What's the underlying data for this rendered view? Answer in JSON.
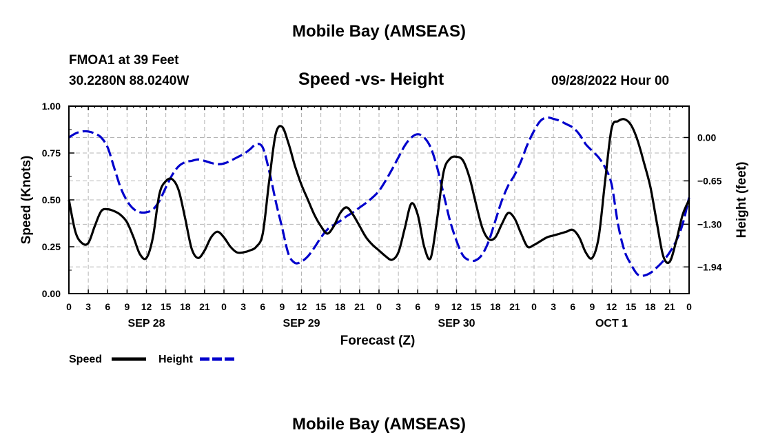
{
  "page": {
    "title": "Mobile Bay (AMSEAS)",
    "footer_title": "Mobile Bay (AMSEAS)",
    "station": "FMOA1 at 39 Feet",
    "coords": "30.2280N  88.0240W",
    "subtitle": "Speed -vs- Height",
    "datetime": "09/28/2022 Hour 00"
  },
  "chart_data": {
    "type": "line",
    "title": "Speed -vs- Height",
    "xlabel": "Forecast (Z)",
    "ylabel": "Speed (Knots)",
    "y2label": "Height (feet)",
    "xlim": [
      0,
      96
    ],
    "ylim": [
      0,
      1.0
    ],
    "y2lim": [
      -2.34,
      0.47
    ],
    "x_ticks": [
      0,
      3,
      6,
      9,
      12,
      15,
      18,
      21,
      24,
      27,
      30,
      33,
      36,
      39,
      42,
      45,
      48,
      51,
      54,
      57,
      60,
      63,
      66,
      69,
      72,
      75,
      78,
      81,
      84,
      87,
      90,
      93,
      96
    ],
    "x_tick_labels": [
      "0",
      "3",
      "6",
      "9",
      "12",
      "15",
      "18",
      "21",
      "0",
      "3",
      "6",
      "9",
      "12",
      "15",
      "18",
      "21",
      "0",
      "3",
      "6",
      "9",
      "12",
      "15",
      "18",
      "21",
      "0",
      "3",
      "6",
      "9",
      "12",
      "15",
      "18",
      "21",
      "0"
    ],
    "day_labels": [
      {
        "x": 12,
        "label": "SEP 28"
      },
      {
        "x": 36,
        "label": "SEP 29"
      },
      {
        "x": 60,
        "label": "SEP 30"
      },
      {
        "x": 84,
        "label": "OCT 1"
      }
    ],
    "y_ticks": [
      0,
      0.25,
      0.5,
      0.75,
      1.0
    ],
    "y_tick_labels": [
      "0.00",
      "0.25",
      "0.50",
      "0.75",
      "1.00"
    ],
    "y2_ticks": [
      0.0,
      -0.65,
      -1.3,
      -1.94
    ],
    "y2_tick_labels": [
      "0.00",
      "−0.65",
      "−1.30",
      "−1.94"
    ],
    "grid": true,
    "legend_position": "bottom-left",
    "series": [
      {
        "name": "Speed",
        "axis": "left",
        "color": "#000000",
        "style": "solid",
        "x": [
          0,
          1,
          2,
          3,
          4,
          5,
          6,
          7,
          8,
          9,
          10,
          11,
          12,
          13,
          14,
          15,
          16,
          17,
          18,
          19,
          20,
          21,
          22,
          23,
          24,
          25,
          26,
          27,
          28,
          29,
          30,
          31,
          32,
          33,
          34,
          35,
          36,
          37,
          38,
          39,
          40,
          41,
          42,
          43,
          44,
          45,
          46,
          47,
          48,
          49,
          50,
          51,
          52,
          53,
          54,
          55,
          56,
          57,
          58,
          59,
          60,
          61,
          62,
          63,
          64,
          65,
          66,
          67,
          68,
          69,
          70,
          71,
          72,
          73,
          74,
          75,
          76,
          77,
          78,
          79,
          80,
          81,
          82,
          83,
          84,
          85,
          86,
          87,
          88,
          89,
          90,
          91,
          92,
          93,
          94,
          95,
          96
        ],
        "values": [
          0.5,
          0.33,
          0.27,
          0.27,
          0.36,
          0.44,
          0.45,
          0.44,
          0.42,
          0.38,
          0.3,
          0.21,
          0.19,
          0.3,
          0.53,
          0.6,
          0.61,
          0.55,
          0.4,
          0.24,
          0.19,
          0.23,
          0.3,
          0.33,
          0.3,
          0.25,
          0.22,
          0.22,
          0.23,
          0.25,
          0.32,
          0.6,
          0.85,
          0.89,
          0.8,
          0.68,
          0.58,
          0.5,
          0.42,
          0.36,
          0.32,
          0.36,
          0.43,
          0.46,
          0.42,
          0.36,
          0.3,
          0.26,
          0.23,
          0.2,
          0.18,
          0.22,
          0.35,
          0.48,
          0.42,
          0.25,
          0.19,
          0.4,
          0.65,
          0.72,
          0.73,
          0.71,
          0.62,
          0.48,
          0.35,
          0.29,
          0.3,
          0.37,
          0.43,
          0.4,
          0.32,
          0.25,
          0.26,
          0.28,
          0.3,
          0.31,
          0.32,
          0.33,
          0.34,
          0.3,
          0.22,
          0.19,
          0.3,
          0.6,
          0.88,
          0.92,
          0.93,
          0.9,
          0.82,
          0.7,
          0.57,
          0.38,
          0.2,
          0.17,
          0.28,
          0.42,
          0.5
        ]
      },
      {
        "name": "Height",
        "axis": "right",
        "color": "#0000cc",
        "style": "dashed",
        "x": [
          0,
          1,
          2,
          3,
          4,
          5,
          6,
          7,
          8,
          9,
          10,
          11,
          12,
          13,
          14,
          15,
          16,
          17,
          18,
          19,
          20,
          21,
          22,
          23,
          24,
          25,
          26,
          27,
          28,
          29,
          30,
          31,
          32,
          33,
          34,
          35,
          36,
          37,
          38,
          39,
          40,
          41,
          42,
          43,
          44,
          45,
          46,
          47,
          48,
          49,
          50,
          51,
          52,
          53,
          54,
          55,
          56,
          57,
          58,
          59,
          60,
          61,
          62,
          63,
          64,
          65,
          66,
          67,
          68,
          69,
          70,
          71,
          72,
          73,
          74,
          75,
          76,
          77,
          78,
          79,
          80,
          81,
          82,
          83,
          84,
          85,
          86,
          87,
          88,
          89,
          90,
          91,
          92,
          93,
          94,
          95,
          96
        ],
        "values": [
          0.0,
          0.06,
          0.09,
          0.09,
          0.06,
          0.0,
          -0.15,
          -0.45,
          -0.75,
          -0.95,
          -1.07,
          -1.12,
          -1.12,
          -1.08,
          -0.95,
          -0.75,
          -0.56,
          -0.43,
          -0.37,
          -0.35,
          -0.33,
          -0.35,
          -0.38,
          -0.4,
          -0.39,
          -0.35,
          -0.3,
          -0.25,
          -0.18,
          -0.1,
          -0.15,
          -0.5,
          -0.95,
          -1.35,
          -1.75,
          -1.88,
          -1.86,
          -1.78,
          -1.65,
          -1.5,
          -1.38,
          -1.31,
          -1.25,
          -1.18,
          -1.12,
          -1.05,
          -0.98,
          -0.9,
          -0.8,
          -0.65,
          -0.48,
          -0.3,
          -0.12,
          0.0,
          0.05,
          0.0,
          -0.15,
          -0.45,
          -0.85,
          -1.25,
          -1.55,
          -1.77,
          -1.84,
          -1.84,
          -1.75,
          -1.55,
          -1.25,
          -0.95,
          -0.72,
          -0.56,
          -0.35,
          -0.1,
          0.1,
          0.25,
          0.3,
          0.28,
          0.25,
          0.2,
          0.15,
          0.05,
          -0.1,
          -0.2,
          -0.3,
          -0.45,
          -0.7,
          -1.3,
          -1.7,
          -1.9,
          -2.05,
          -2.07,
          -2.03,
          -1.95,
          -1.85,
          -1.72,
          -1.55,
          -1.3,
          -0.9
        ]
      }
    ],
    "legend": [
      {
        "label": "Speed",
        "color": "#000000",
        "style": "solid"
      },
      {
        "label": "Height",
        "color": "#0000cc",
        "style": "dashed"
      }
    ]
  }
}
